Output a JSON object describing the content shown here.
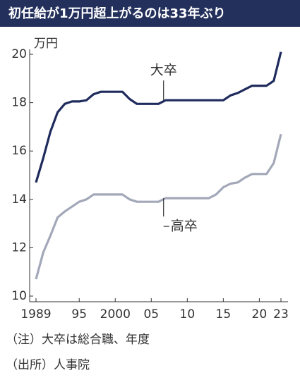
{
  "chart_data": {
    "type": "line",
    "title": "初任給が1万円超上がるのは33年ぶり",
    "y_label": "万円",
    "x": [
      1989,
      1990,
      1991,
      1992,
      1993,
      1994,
      1995,
      1996,
      1997,
      1998,
      1999,
      2000,
      2001,
      2002,
      2003,
      2004,
      2005,
      2006,
      2007,
      2008,
      2009,
      2010,
      2011,
      2012,
      2013,
      2014,
      2015,
      2016,
      2017,
      2018,
      2019,
      2020,
      2021,
      2022,
      2023
    ],
    "series": [
      {
        "name": "大卒",
        "color": "#1f2b5c",
        "values": [
          14.7,
          15.7,
          16.8,
          17.6,
          17.95,
          18.05,
          18.05,
          18.1,
          18.35,
          18.45,
          18.45,
          18.45,
          18.45,
          18.15,
          17.95,
          17.95,
          17.95,
          17.95,
          18.1,
          18.1,
          18.1,
          18.1,
          18.1,
          18.1,
          18.1,
          18.1,
          18.1,
          18.3,
          18.4,
          18.55,
          18.7,
          18.7,
          18.7,
          18.9,
          20.1
        ]
      },
      {
        "name": "高卒",
        "color": "#a3a8b9",
        "values": [
          10.7,
          11.8,
          12.5,
          13.25,
          13.5,
          13.7,
          13.9,
          14.0,
          14.2,
          14.2,
          14.2,
          14.2,
          14.2,
          14.0,
          13.9,
          13.9,
          13.9,
          13.9,
          14.05,
          14.05,
          14.05,
          14.05,
          14.05,
          14.05,
          14.05,
          14.2,
          14.5,
          14.65,
          14.7,
          14.9,
          15.05,
          15.05,
          15.05,
          15.5,
          16.7
        ]
      }
    ],
    "xlim": [
      1989,
      2023
    ],
    "xticks": [
      1989,
      {
        "value": 1995,
        "label": "95"
      },
      2000,
      {
        "value": 2005,
        "label": "05"
      },
      {
        "value": 2010,
        "label": "10"
      },
      {
        "value": 2015,
        "label": "15"
      },
      {
        "value": 2020,
        "label": "20"
      },
      {
        "value": 2023,
        "label": "23"
      }
    ],
    "ylim": [
      10,
      20
    ],
    "yticks": [
      10,
      12,
      14,
      16,
      18,
      20
    ],
    "grid": false,
    "notes": [
      "（注）大卒は総合職、年度",
      "（出所）人事院"
    ]
  }
}
